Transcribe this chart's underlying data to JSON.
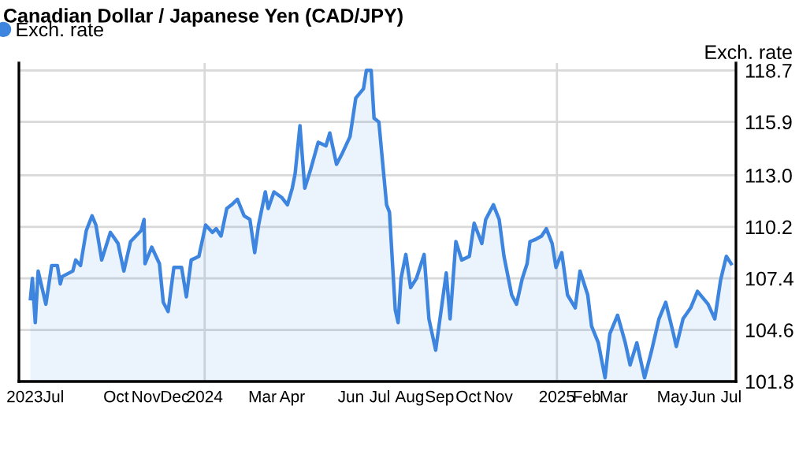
{
  "chart_data": {
    "type": "area",
    "title": "Canadian Dollar / Japanese Yen (CAD/JPY)",
    "ylabel": "Exch. rate",
    "legend": "top left",
    "grid": "y",
    "xlim": [
      "2023-06-22",
      "2025-07-06"
    ],
    "ylim": [
      101.8,
      119.1
    ],
    "yticks": [
      101.8,
      104.6,
      107.4,
      110.2,
      {
        "value": 113.0,
        "label": "113.0"
      },
      115.9,
      118.7
    ],
    "xticks": [
      {
        "value": "2023-06-28",
        "label": "2023"
      },
      {
        "value": "2023-07-28",
        "label": "Jul"
      },
      {
        "value": "2023-10-01",
        "label": "Oct"
      },
      {
        "value": "2023-11-01",
        "label": "Nov"
      },
      {
        "value": "2023-12-01",
        "label": "Dec"
      },
      {
        "value": "2024-01-01",
        "label": "2024"
      },
      {
        "value": "2024-03-01",
        "label": "Mar"
      },
      {
        "value": "2024-04-01",
        "label": "Apr"
      },
      {
        "value": "2024-06-01",
        "label": "Jun"
      },
      {
        "value": "2024-07-01",
        "label": "Jul"
      },
      {
        "value": "2024-08-01",
        "label": "Aug"
      },
      {
        "value": "2024-09-01",
        "label": "Sep"
      },
      {
        "value": "2024-10-01",
        "label": "Oct"
      },
      {
        "value": "2024-11-01",
        "label": "Nov"
      },
      {
        "value": "2025-01-01",
        "label": "2025"
      },
      {
        "value": "2025-02-01",
        "label": "Feb"
      },
      {
        "value": "2025-03-01",
        "label": "Mar"
      },
      {
        "value": "2025-05-01",
        "label": "May"
      },
      {
        "value": "2025-06-01",
        "label": "Jun"
      },
      {
        "value": "2025-07-01",
        "label": "Jul"
      }
    ],
    "ref_lines": [
      {
        "axis": "x",
        "value": "2024-01-01",
        "color": "#d9d9d9"
      },
      {
        "axis": "x",
        "value": "2025-01-01",
        "color": "#d9d9d9"
      }
    ],
    "x": [
      "2023-07-04",
      "2023-07-06",
      "2023-07-09",
      "2023-07-12",
      "2023-07-20",
      "2023-07-26",
      "2023-08-01",
      "2023-08-04",
      "2023-08-06",
      "2023-08-17",
      "2023-08-20",
      "2023-08-25",
      "2023-08-31",
      "2023-09-06",
      "2023-09-10",
      "2023-09-16",
      "2023-09-25",
      "2023-10-03",
      "2023-10-09",
      "2023-10-16",
      "2023-10-27",
      "2023-10-30",
      "2023-10-31",
      "2023-11-07",
      "2023-11-15",
      "2023-11-19",
      "2023-11-24",
      "2023-11-30",
      "2023-12-08",
      "2023-12-13",
      "2023-12-18",
      "2023-12-26",
      "2024-01-02",
      "2024-01-09",
      "2024-01-13",
      "2024-01-18",
      "2024-01-24",
      "2024-01-29",
      "2024-02-04",
      "2024-02-11",
      "2024-02-17",
      "2024-02-22",
      "2024-02-26",
      "2024-03-04",
      "2024-03-07",
      "2024-03-13",
      "2024-03-21",
      "2024-03-27",
      "2024-04-01",
      "2024-04-04",
      "2024-04-09",
      "2024-04-14",
      "2024-04-20",
      "2024-04-28",
      "2024-05-06",
      "2024-05-10",
      "2024-05-17",
      "2024-05-23",
      "2024-05-31",
      "2024-06-06",
      "2024-06-14",
      "2024-06-17",
      "2024-06-22",
      "2024-06-25",
      "2024-06-30",
      "2024-07-03",
      "2024-07-08",
      "2024-07-11",
      "2024-07-17",
      "2024-07-20",
      "2024-07-23",
      "2024-07-28",
      "2024-08-02",
      "2024-08-08",
      "2024-08-16",
      "2024-08-21",
      "2024-08-28",
      "2024-09-08",
      "2024-09-12",
      "2024-09-18",
      "2024-09-24",
      "2024-10-02",
      "2024-10-07",
      "2024-10-15",
      "2024-10-19",
      "2024-10-27",
      "2024-11-02",
      "2024-11-07",
      "2024-11-15",
      "2024-11-20",
      "2024-11-26",
      "2024-12-01",
      "2024-12-04",
      "2024-12-09",
      "2024-12-16",
      "2024-12-21",
      "2024-12-27",
      "2024-12-31",
      "2025-01-06",
      "2025-01-12",
      "2025-01-20",
      "2025-01-25",
      "2025-02-02",
      "2025-02-06",
      "2025-02-13",
      "2025-02-20",
      "2025-02-25",
      "2025-03-05",
      "2025-03-13",
      "2025-03-18",
      "2025-03-25",
      "2025-04-02",
      "2025-04-09",
      "2025-04-17",
      "2025-04-24",
      "2025-05-02",
      "2025-05-05",
      "2025-05-12",
      "2025-05-20",
      "2025-05-27",
      "2025-06-07",
      "2025-06-14",
      "2025-06-20",
      "2025-06-26",
      "2025-07-01"
    ],
    "series": [
      {
        "name": "Exch. rate",
        "color": "#3d85de",
        "values": [
          106.3,
          107.4,
          105.0,
          107.8,
          106.0,
          108.1,
          108.1,
          107.1,
          107.5,
          107.8,
          108.4,
          108.1,
          110.0,
          110.8,
          110.3,
          108.4,
          109.9,
          109.3,
          107.8,
          109.4,
          110.0,
          110.6,
          108.2,
          109.1,
          108.2,
          106.1,
          105.6,
          108.0,
          108.0,
          106.4,
          108.4,
          108.6,
          110.3,
          109.9,
          110.1,
          109.7,
          111.2,
          111.4,
          111.7,
          110.8,
          110.6,
          108.8,
          110.3,
          112.1,
          111.2,
          112.1,
          111.8,
          111.4,
          112.3,
          113.1,
          115.7,
          112.3,
          113.3,
          114.8,
          114.6,
          115.3,
          113.6,
          114.2,
          115.1,
          117.2,
          117.7,
          118.7,
          118.7,
          116.1,
          115.9,
          114.2,
          111.4,
          111.0,
          105.7,
          105.0,
          107.4,
          108.7,
          106.9,
          107.4,
          108.7,
          105.2,
          103.5,
          107.7,
          105.2,
          109.4,
          108.4,
          108.6,
          110.4,
          109.3,
          110.6,
          111.4,
          110.6,
          108.6,
          106.5,
          106.0,
          107.4,
          108.2,
          109.4,
          109.5,
          109.7,
          110.1,
          109.3,
          108.0,
          108.8,
          106.5,
          105.8,
          107.8,
          106.5,
          104.8,
          103.9,
          102.0,
          104.4,
          105.4,
          103.9,
          102.7,
          103.9,
          102.0,
          103.4,
          105.2,
          106.1,
          104.4,
          103.7,
          105.2,
          105.8,
          106.7,
          106.0,
          105.2,
          107.3,
          108.6,
          108.2
        ]
      }
    ]
  }
}
